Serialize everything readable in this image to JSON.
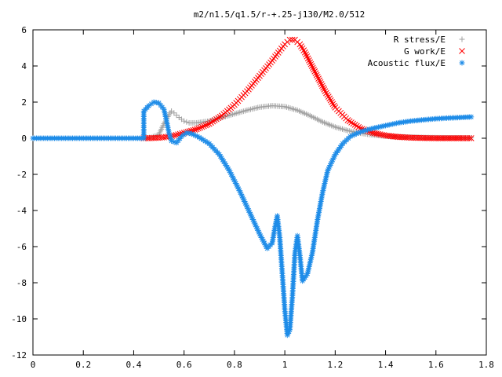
{
  "chart_data": {
    "type": "scatter",
    "title": "m2/n1.5/q1.5/r-+.25-j130/M2.0/512",
    "xlabel": "",
    "ylabel": "",
    "xlim": [
      0,
      1.8
    ],
    "ylim": [
      -12,
      6
    ],
    "xticks": [
      0,
      0.2,
      0.4,
      0.6,
      0.8,
      1,
      1.2,
      1.4,
      1.6,
      1.8
    ],
    "xtick_labels": [
      "0",
      "0.2",
      "0.4",
      "0.6",
      "0.8",
      "1",
      "1.2",
      "1.4",
      "1.6",
      "1.8"
    ],
    "yticks": [
      -12,
      -10,
      -8,
      -6,
      -4,
      -2,
      0,
      2,
      4,
      6
    ],
    "ytick_labels": [
      "-12",
      "-10",
      "-8",
      "-6",
      "-4",
      "-2",
      "0",
      "2",
      "4",
      "6"
    ],
    "grid": false,
    "legend_position": "top-right",
    "series": [
      {
        "name": "R stress/E",
        "marker": "plus",
        "color": "#a0a0a0",
        "points": [
          [
            0.44,
            0.0
          ],
          [
            0.47,
            0.05
          ],
          [
            0.5,
            0.2
          ],
          [
            0.52,
            0.8
          ],
          [
            0.54,
            1.3
          ],
          [
            0.55,
            1.5
          ],
          [
            0.56,
            1.4
          ],
          [
            0.58,
            1.15
          ],
          [
            0.6,
            0.95
          ],
          [
            0.62,
            0.85
          ],
          [
            0.65,
            0.85
          ],
          [
            0.7,
            0.95
          ],
          [
            0.75,
            1.15
          ],
          [
            0.8,
            1.35
          ],
          [
            0.85,
            1.55
          ],
          [
            0.9,
            1.72
          ],
          [
            0.95,
            1.8
          ],
          [
            1.0,
            1.75
          ],
          [
            1.05,
            1.55
          ],
          [
            1.1,
            1.25
          ],
          [
            1.15,
            0.9
          ],
          [
            1.2,
            0.62
          ],
          [
            1.25,
            0.42
          ],
          [
            1.3,
            0.28
          ],
          [
            1.35,
            0.18
          ],
          [
            1.4,
            0.12
          ],
          [
            1.45,
            0.08
          ],
          [
            1.5,
            0.06
          ],
          [
            1.55,
            0.04
          ],
          [
            1.6,
            0.03
          ],
          [
            1.65,
            0.02
          ],
          [
            1.7,
            0.02
          ],
          [
            1.74,
            0.02
          ]
        ]
      },
      {
        "name": "G work/E",
        "marker": "cross",
        "color": "#ff0000",
        "points": [
          [
            0.44,
            0.0
          ],
          [
            0.48,
            0.01
          ],
          [
            0.52,
            0.05
          ],
          [
            0.56,
            0.15
          ],
          [
            0.6,
            0.3
          ],
          [
            0.65,
            0.5
          ],
          [
            0.7,
            0.8
          ],
          [
            0.75,
            1.25
          ],
          [
            0.8,
            1.85
          ],
          [
            0.85,
            2.6
          ],
          [
            0.9,
            3.45
          ],
          [
            0.95,
            4.3
          ],
          [
            0.98,
            4.85
          ],
          [
            1.0,
            5.2
          ],
          [
            1.02,
            5.45
          ],
          [
            1.04,
            5.45
          ],
          [
            1.06,
            5.2
          ],
          [
            1.08,
            4.75
          ],
          [
            1.1,
            4.2
          ],
          [
            1.13,
            3.4
          ],
          [
            1.16,
            2.6
          ],
          [
            1.2,
            1.7
          ],
          [
            1.25,
            1.0
          ],
          [
            1.3,
            0.55
          ],
          [
            1.35,
            0.3
          ],
          [
            1.4,
            0.15
          ],
          [
            1.45,
            0.07
          ],
          [
            1.5,
            0.03
          ],
          [
            1.55,
            0.01
          ],
          [
            1.6,
            0.0
          ],
          [
            1.65,
            0.0
          ],
          [
            1.7,
            0.0
          ],
          [
            1.74,
            0.0
          ]
        ]
      },
      {
        "name": "Acoustic flux/E",
        "marker": "star",
        "color": "#1e8ce8",
        "points": [
          [
            0.0,
            0.0
          ],
          [
            0.05,
            0.0
          ],
          [
            0.1,
            0.0
          ],
          [
            0.15,
            0.0
          ],
          [
            0.2,
            0.0
          ],
          [
            0.25,
            0.0
          ],
          [
            0.3,
            0.0
          ],
          [
            0.35,
            0.0
          ],
          [
            0.4,
            0.0
          ],
          [
            0.44,
            0.0
          ],
          [
            0.44,
            1.5
          ],
          [
            0.46,
            1.8
          ],
          [
            0.48,
            2.0
          ],
          [
            0.5,
            1.95
          ],
          [
            0.52,
            1.6
          ],
          [
            0.53,
            1.0
          ],
          [
            0.54,
            0.3
          ],
          [
            0.55,
            -0.15
          ],
          [
            0.57,
            -0.25
          ],
          [
            0.59,
            0.1
          ],
          [
            0.61,
            0.3
          ],
          [
            0.63,
            0.25
          ],
          [
            0.66,
            0.05
          ],
          [
            0.7,
            -0.3
          ],
          [
            0.74,
            -0.9
          ],
          [
            0.78,
            -1.8
          ],
          [
            0.82,
            -2.9
          ],
          [
            0.86,
            -4.1
          ],
          [
            0.9,
            -5.3
          ],
          [
            0.93,
            -6.1
          ],
          [
            0.95,
            -5.8
          ],
          [
            0.96,
            -5.0
          ],
          [
            0.97,
            -4.3
          ],
          [
            0.98,
            -5.5
          ],
          [
            0.99,
            -7.5
          ],
          [
            1.0,
            -9.5
          ],
          [
            1.01,
            -10.9
          ],
          [
            1.02,
            -10.6
          ],
          [
            1.03,
            -8.8
          ],
          [
            1.04,
            -6.4
          ],
          [
            1.05,
            -5.4
          ],
          [
            1.06,
            -6.5
          ],
          [
            1.07,
            -7.9
          ],
          [
            1.09,
            -7.5
          ],
          [
            1.11,
            -6.3
          ],
          [
            1.13,
            -4.5
          ],
          [
            1.15,
            -3.0
          ],
          [
            1.17,
            -1.8
          ],
          [
            1.2,
            -0.9
          ],
          [
            1.23,
            -0.3
          ],
          [
            1.26,
            0.1
          ],
          [
            1.3,
            0.35
          ],
          [
            1.35,
            0.55
          ],
          [
            1.4,
            0.7
          ],
          [
            1.45,
            0.85
          ],
          [
            1.5,
            0.95
          ],
          [
            1.55,
            1.02
          ],
          [
            1.6,
            1.08
          ],
          [
            1.65,
            1.12
          ],
          [
            1.7,
            1.15
          ],
          [
            1.74,
            1.18
          ]
        ]
      }
    ]
  }
}
